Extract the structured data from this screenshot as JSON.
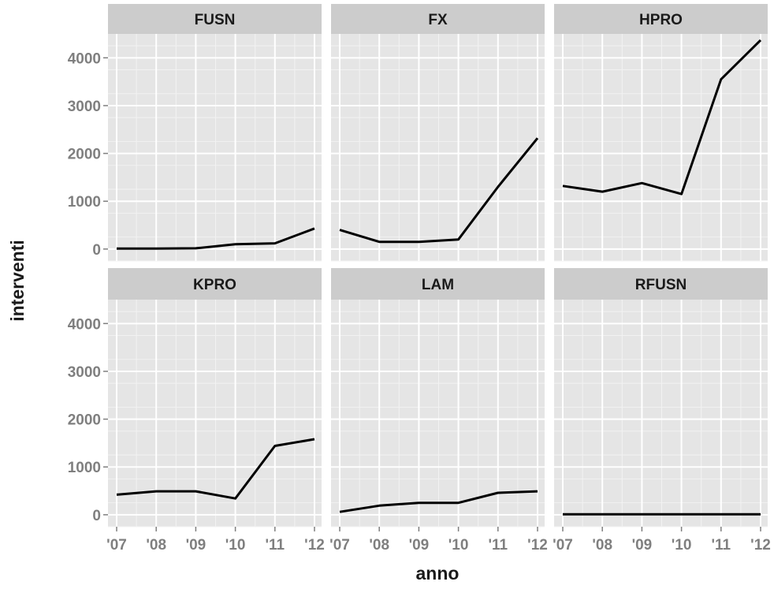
{
  "chart_data": {
    "type": "line",
    "facet": true,
    "xlabel": "anno",
    "ylabel": "interventi",
    "x": [
      "'07",
      "'08",
      "'09",
      "'10",
      "'11",
      "'12"
    ],
    "ylim": [
      -250,
      4500
    ],
    "yticks": [
      0,
      1000,
      2000,
      3000,
      4000
    ],
    "grid": true,
    "colors": {
      "panel": "#e5e5e5",
      "strip": "#cccccc",
      "grid": "#ffffff",
      "line": "#000000"
    },
    "facets": [
      {
        "label": "FUSN",
        "values": [
          10,
          10,
          15,
          100,
          120,
          430
        ]
      },
      {
        "label": "FX",
        "values": [
          400,
          150,
          150,
          200,
          1300,
          2320
        ]
      },
      {
        "label": "HPRO",
        "values": [
          1320,
          1200,
          1380,
          1150,
          3550,
          4370
        ]
      },
      {
        "label": "KPRO",
        "values": [
          420,
          490,
          490,
          340,
          1440,
          1580
        ]
      },
      {
        "label": "LAM",
        "values": [
          60,
          190,
          250,
          250,
          460,
          490
        ]
      },
      {
        "label": "RFUSN",
        "values": [
          10,
          10,
          10,
          10,
          10,
          10
        ]
      }
    ]
  }
}
